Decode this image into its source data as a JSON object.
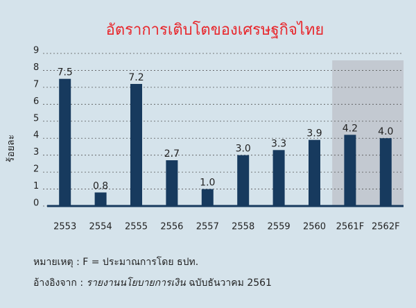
{
  "chart_data": {
    "type": "bar",
    "title": "อัตราการเติบโตของเศรษฐกิจไทย",
    "y_label": "ร้อยละ",
    "categories": [
      "2553",
      "2554",
      "2555",
      "2556",
      "2557",
      "2558",
      "2559",
      "2560",
      "2561F",
      "2562F"
    ],
    "values": [
      7.5,
      0.8,
      7.2,
      2.7,
      1.0,
      3.0,
      3.3,
      3.9,
      4.2,
      4.0
    ],
    "value_labels": [
      "7.5",
      "0.8",
      "7.2",
      "2.7",
      "1.0",
      "3.0",
      "3.3",
      "3.9",
      "4.2",
      "4.0"
    ],
    "color": "#173a5e",
    "ylim": [
      0,
      9
    ],
    "yticks": [
      0,
      1,
      2,
      3,
      4,
      5,
      6,
      7,
      8,
      9
    ],
    "grid": true,
    "highlight": {
      "categories": [
        "2561F",
        "2562F"
      ],
      "color": "#c3c9d1"
    }
  },
  "notes": {
    "note": "หมายเหตุ : F = ประมาณการโดย ธปท.",
    "source_prefix": "อ้างอิงจาก :",
    "source_title": "รายงานนโยบายการเงิน",
    "source_suffix": "ฉบับธันวาคม 2561"
  }
}
